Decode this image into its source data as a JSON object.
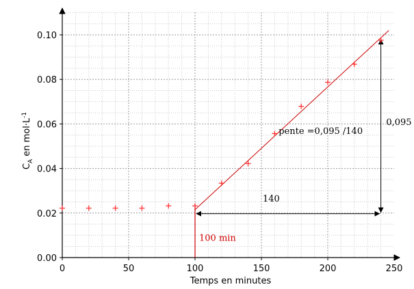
{
  "chart_data": {
    "type": "scatter",
    "xlabel": "Temps en minutes",
    "ylabel": "C",
    "ylabel_sub": "A",
    "ylabel_unit": " en mol·L",
    "ylabel_sup": "-1",
    "xlim": [
      0,
      250
    ],
    "ylim": [
      0,
      0.11
    ],
    "x_ticks": [
      0,
      50,
      100,
      150,
      200,
      250
    ],
    "x_tick_labels": [
      "0",
      "50",
      "100",
      "150",
      "200",
      "250"
    ],
    "y_ticks": [
      0,
      0.02,
      0.04,
      0.06,
      0.08,
      0.1
    ],
    "y_tick_labels": [
      "0.00",
      "0.02",
      "0.04",
      "0.06",
      "0.08",
      "0.10"
    ],
    "grid": true,
    "marker_color": "#ff3333",
    "line_color": "#cc0000",
    "points": [
      {
        "x": 0,
        "y": 0.0222
      },
      {
        "x": 20,
        "y": 0.0222
      },
      {
        "x": 40,
        "y": 0.0222
      },
      {
        "x": 60,
        "y": 0.0222
      },
      {
        "x": 80,
        "y": 0.0232
      },
      {
        "x": 100,
        "y": 0.0232
      },
      {
        "x": 120,
        "y": 0.0334
      },
      {
        "x": 140,
        "y": 0.0422
      },
      {
        "x": 160,
        "y": 0.0557
      },
      {
        "x": 180,
        "y": 0.0679
      },
      {
        "x": 200,
        "y": 0.0787
      },
      {
        "x": 220,
        "y": 0.0868
      },
      {
        "x": 240,
        "y": 0.0976
      }
    ],
    "fit_line": {
      "x1": 100,
      "y1": 0.0215,
      "x2": 246,
      "y2": 0.102
    },
    "vline": {
      "x": 100,
      "y_from": 0,
      "y_to": 0.024
    },
    "horizontal_arrow": {
      "x1": 100,
      "x2": 240,
      "y": 0.0197
    },
    "vertical_arrow": {
      "x": 240,
      "y1": 0.0197,
      "y2": 0.0985
    },
    "annotations": {
      "vline_label": "100 min",
      "horizontal_label": "140",
      "vertical_label": "0,095",
      "slope_label": "pente  =0,095 /140"
    }
  }
}
